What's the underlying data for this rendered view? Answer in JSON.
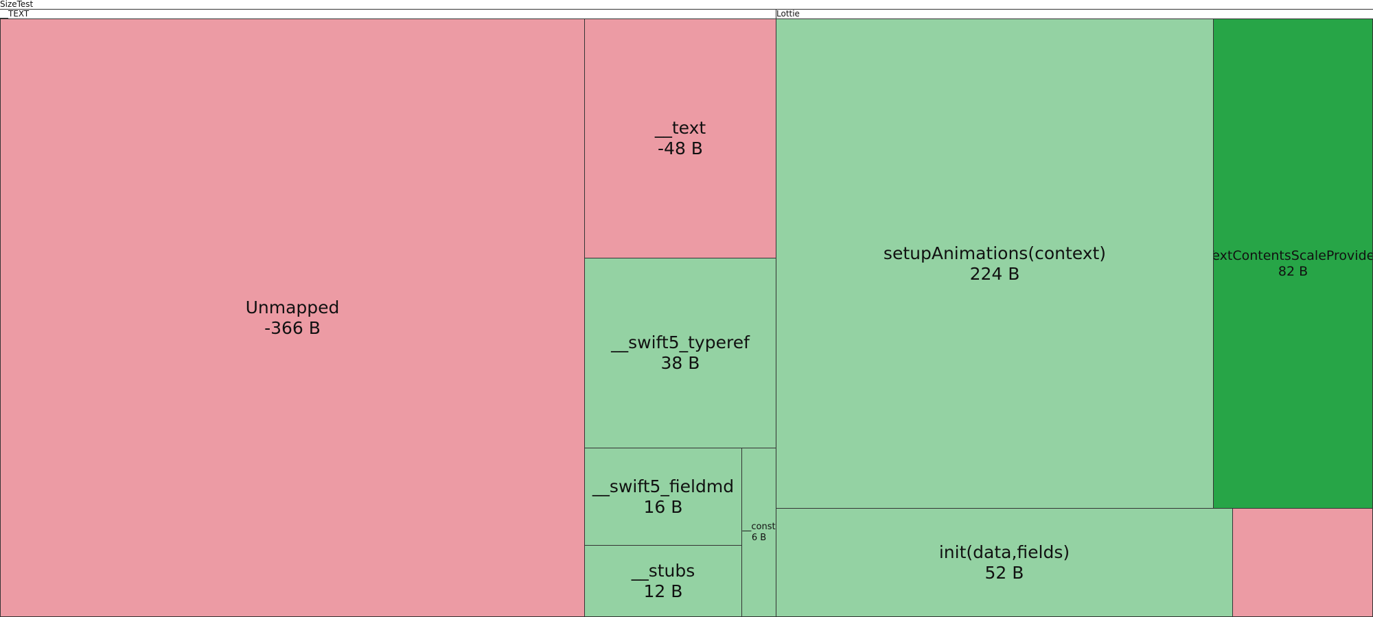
{
  "header": {
    "title": "SizeTest"
  },
  "groups": [
    {
      "label": "__TEXT"
    },
    {
      "label": "Lottie"
    }
  ],
  "nodes": [
    {
      "label": "Unmapped",
      "size": "-366 B"
    },
    {
      "label": "__text",
      "size": "-48 B"
    },
    {
      "label": "__swift5_typeref",
      "size": "38 B"
    },
    {
      "label": "__swift5_fieldmd",
      "size": "16 B"
    },
    {
      "label": "__stubs",
      "size": "12 B"
    },
    {
      "label": "__const",
      "size": "6 B"
    },
    {
      "label": "setupAnimations(context)",
      "size": "224 B"
    },
    {
      "label": "TextContentsScaleProvider",
      "size": "82 B"
    },
    {
      "label": "init(data,fields)",
      "size": "52 B"
    }
  ]
}
